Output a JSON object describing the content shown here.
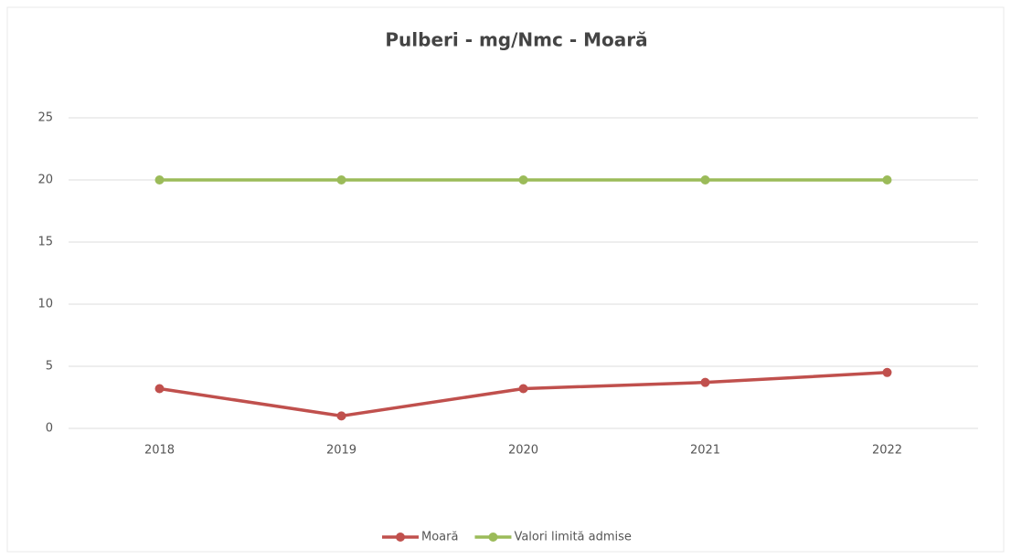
{
  "chart_data": {
    "type": "line",
    "title": "Pulberi - mg/Nmc - Moară",
    "categories": [
      "2018",
      "2019",
      "2020",
      "2021",
      "2022"
    ],
    "series": [
      {
        "name": "Moară",
        "color": "#c0504d",
        "values": [
          3.2,
          1.0,
          3.2,
          3.7,
          4.5
        ]
      },
      {
        "name": "Valori limită admise",
        "color": "#9bbb59",
        "values": [
          20,
          20,
          20,
          20,
          20
        ]
      }
    ],
    "ylim": [
      0,
      25
    ],
    "yticks": [
      0,
      5,
      10,
      15,
      20,
      25
    ],
    "grid": true,
    "legend": "bottom"
  }
}
